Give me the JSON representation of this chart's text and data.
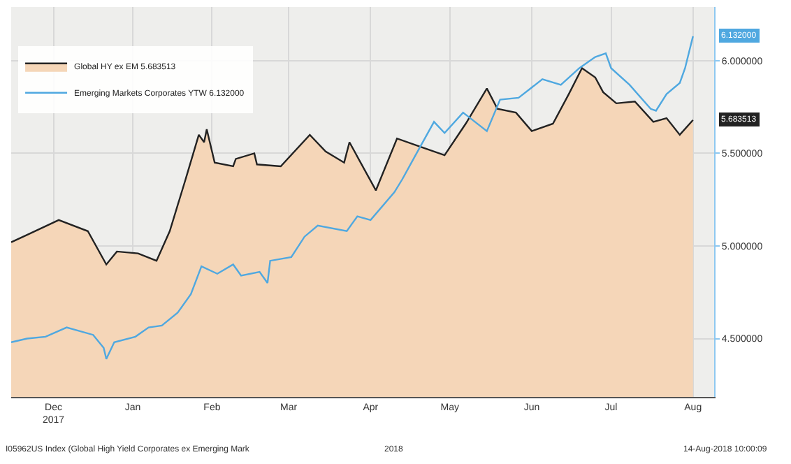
{
  "chart_data": {
    "type": "line",
    "xlim": [
      "2017-11-28",
      "2018-08-21"
    ],
    "xticks": [
      {
        "value": "2017-12-14",
        "label": "Dec\n2017"
      },
      {
        "value": "2018-01-13",
        "label": "Jan"
      },
      {
        "value": "2018-02-12",
        "label": "Feb"
      },
      {
        "value": "2018-03-13",
        "label": "Mar"
      },
      {
        "value": "2018-04-13",
        "label": "Apr"
      },
      {
        "value": "2018-05-13",
        "label": "May"
      },
      {
        "value": "2018-06-13",
        "label": "Jun"
      },
      {
        "value": "2018-07-13",
        "label": "Jul"
      },
      {
        "value": "2018-08-13",
        "label": "Aug"
      }
    ],
    "ylim": [
      4.185,
      6.29
    ],
    "yticks": [
      {
        "value": 4.5,
        "label": "4.500000"
      },
      {
        "value": 5.0,
        "label": "5.000000"
      },
      {
        "value": 5.5,
        "label": "5.500000"
      },
      {
        "value": 6.0,
        "label": "6.000000"
      }
    ],
    "grid": true,
    "legend": "top left",
    "series": [
      {
        "name": "Global HY ex EM 5.683513",
        "type": "area",
        "color": "#222222",
        "x": [
          "2017-11-28",
          "2017-12-04",
          "2017-12-16",
          "2017-12-27",
          "2018-01-03",
          "2018-01-07",
          "2018-01-15",
          "2018-01-22",
          "2018-01-27",
          "2018-02-02",
          "2018-02-07",
          "2018-02-09",
          "2018-02-10",
          "2018-02-13",
          "2018-02-20",
          "2018-02-21",
          "2018-02-28",
          "2018-03-01",
          "2018-03-10",
          "2018-03-21",
          "2018-03-27",
          "2018-04-03",
          "2018-04-05",
          "2018-04-15",
          "2018-04-23",
          "2018-05-01",
          "2018-05-11",
          "2018-05-19",
          "2018-05-27",
          "2018-05-31",
          "2018-06-07",
          "2018-06-13",
          "2018-06-21",
          "2018-06-27",
          "2018-07-02",
          "2018-07-07",
          "2018-07-10",
          "2018-07-15",
          "2018-07-22",
          "2018-07-29",
          "2018-08-03",
          "2018-08-08",
          "2018-08-13"
        ],
        "values": [
          5.02,
          5.06,
          5.14,
          5.08,
          4.9,
          4.97,
          4.96,
          4.92,
          5.08,
          5.36,
          5.6,
          5.56,
          5.63,
          5.45,
          5.43,
          5.47,
          5.5,
          5.44,
          5.43,
          5.6,
          5.51,
          5.45,
          5.56,
          5.3,
          5.58,
          5.54,
          5.49,
          5.66,
          5.85,
          5.74,
          5.72,
          5.62,
          5.66,
          5.82,
          5.96,
          5.91,
          5.83,
          5.77,
          5.78,
          5.67,
          5.69,
          5.6,
          5.68
        ]
      },
      {
        "name": "Emerging Markets Corporates YTW 6.132000",
        "color": "#4fa8e0",
        "x": [
          "2017-11-28",
          "2017-12-04",
          "2017-12-11",
          "2017-12-19",
          "2017-12-29",
          "2018-01-02",
          "2018-01-03",
          "2018-01-06",
          "2018-01-14",
          "2018-01-19",
          "2018-01-24",
          "2018-01-30",
          "2018-02-04",
          "2018-02-08",
          "2018-02-14",
          "2018-02-20",
          "2018-02-23",
          "2018-03-02",
          "2018-03-05",
          "2018-03-06",
          "2018-03-14",
          "2018-03-19",
          "2018-03-24",
          "2018-04-04",
          "2018-04-08",
          "2018-04-13",
          "2018-04-22",
          "2018-04-25",
          "2018-04-30",
          "2018-05-07",
          "2018-05-11",
          "2018-05-18",
          "2018-05-27",
          "2018-06-01",
          "2018-06-08",
          "2018-06-17",
          "2018-06-24",
          "2018-07-01",
          "2018-07-07",
          "2018-07-11",
          "2018-07-13",
          "2018-07-20",
          "2018-07-28",
          "2018-07-30",
          "2018-08-03",
          "2018-08-08",
          "2018-08-10",
          "2018-08-13"
        ],
        "values": [
          4.48,
          4.5,
          4.51,
          4.56,
          4.52,
          4.45,
          4.39,
          4.48,
          4.51,
          4.56,
          4.57,
          4.64,
          4.74,
          4.89,
          4.85,
          4.9,
          4.84,
          4.86,
          4.8,
          4.92,
          4.94,
          5.05,
          5.11,
          5.08,
          5.16,
          5.14,
          5.29,
          5.36,
          5.49,
          5.67,
          5.61,
          5.72,
          5.62,
          5.79,
          5.8,
          5.9,
          5.87,
          5.96,
          6.02,
          6.04,
          5.96,
          5.87,
          5.74,
          5.73,
          5.82,
          5.88,
          5.96,
          6.132
        ]
      }
    ],
    "annotations": [
      "2018",
      "I05962US Index (Global High Yield Corporates ex Emerging Mark",
      "14-Aug-2018 10:00:09",
      "6.132000",
      "5.683513"
    ]
  }
}
